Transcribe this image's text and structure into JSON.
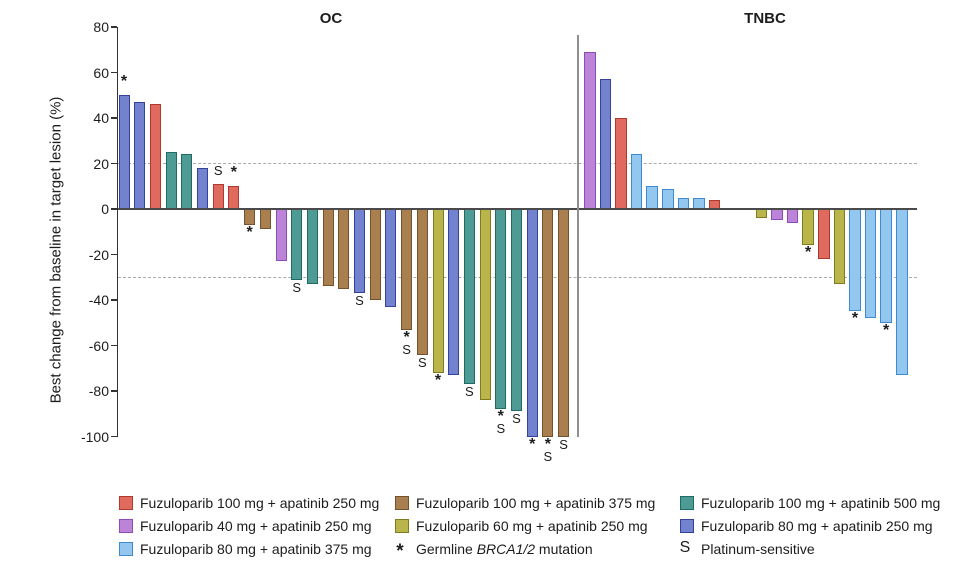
{
  "figure": {
    "ylabel": "Best change from baseline in target lesion (%)"
  },
  "colors": {
    "red": {
      "fill": "#E16A5F",
      "stroke": "#AE3A2E"
    },
    "purple": {
      "fill": "#BC84D9",
      "stroke": "#8F4BB8"
    },
    "ltblue": {
      "fill": "#94C7EF",
      "stroke": "#3E8BCD"
    },
    "brown": {
      "fill": "#A97F50",
      "stroke": "#74522B"
    },
    "olive": {
      "fill": "#B9B54B",
      "stroke": "#7F7B20"
    },
    "teal": {
      "fill": "#4E9B95",
      "stroke": "#1F6A63"
    },
    "blue": {
      "fill": "#7382CF",
      "stroke": "#35429B"
    }
  },
  "chart_data": {
    "type": "bar",
    "title": "",
    "ylabel": "Best change from baseline in target lesion (%)",
    "ylim": [
      -100,
      80
    ],
    "yticks": [
      80,
      60,
      40,
      20,
      0,
      -20,
      -40,
      -60,
      -80,
      -100
    ],
    "reference_lines_pct": [
      20,
      -30
    ],
    "grid": "dashed horizontal reference lines at +20 and -30",
    "legend_position": "bottom",
    "marks_meaning": {
      "*": "Germline BRCA1/2 mutation",
      "S": "Platinum-sensitive"
    },
    "panels": [
      {
        "name": "OC",
        "bars": [
          {
            "v": 50,
            "c": "blue",
            "m": "*"
          },
          {
            "v": 47,
            "c": "blue"
          },
          {
            "v": 46,
            "c": "red"
          },
          {
            "v": 25,
            "c": "teal"
          },
          {
            "v": 24,
            "c": "teal"
          },
          {
            "v": 18,
            "c": "blue"
          },
          {
            "v": 11,
            "c": "red",
            "m": "S"
          },
          {
            "v": 10,
            "c": "red",
            "m": "*"
          },
          {
            "v": -7,
            "c": "brown",
            "m": "*"
          },
          {
            "v": -9,
            "c": "brown"
          },
          {
            "v": -23,
            "c": "purple"
          },
          {
            "v": -31,
            "c": "teal",
            "m": "S"
          },
          {
            "v": -33,
            "c": "teal"
          },
          {
            "v": -34,
            "c": "brown"
          },
          {
            "v": -35,
            "c": "brown"
          },
          {
            "v": -37,
            "c": "blue",
            "m": "S"
          },
          {
            "v": -40,
            "c": "brown"
          },
          {
            "v": -43,
            "c": "blue"
          },
          {
            "v": -53,
            "c": "brown",
            "m": "*S"
          },
          {
            "v": -64,
            "c": "brown",
            "m": "S"
          },
          {
            "v": -72,
            "c": "olive",
            "m": "*"
          },
          {
            "v": -73,
            "c": "blue"
          },
          {
            "v": -77,
            "c": "teal",
            "m": "S"
          },
          {
            "v": -84,
            "c": "olive"
          },
          {
            "v": -88,
            "c": "teal",
            "m": "*S"
          },
          {
            "v": -89,
            "c": "teal",
            "m": "S"
          },
          {
            "v": -100,
            "c": "blue",
            "m": "*"
          },
          {
            "v": -100,
            "c": "brown",
            "m": "*S"
          },
          {
            "v": -100,
            "c": "brown",
            "m": "S"
          }
        ]
      },
      {
        "name": "TNBC",
        "bars": [
          {
            "v": 69,
            "c": "purple"
          },
          {
            "v": 57,
            "c": "blue"
          },
          {
            "v": 40,
            "c": "red"
          },
          {
            "v": 24,
            "c": "ltblue"
          },
          {
            "v": 10,
            "c": "ltblue"
          },
          {
            "v": 9,
            "c": "ltblue"
          },
          {
            "v": 5,
            "c": "ltblue"
          },
          {
            "v": 5,
            "c": "ltblue"
          },
          {
            "v": 4,
            "c": "red"
          },
          {
            "v": 0,
            "c": null
          },
          {
            "v": 0,
            "c": null
          },
          {
            "v": -4,
            "c": "olive"
          },
          {
            "v": -5,
            "c": "purple"
          },
          {
            "v": -6,
            "c": "purple"
          },
          {
            "v": -16,
            "c": "olive",
            "m": "*"
          },
          {
            "v": -22,
            "c": "red"
          },
          {
            "v": -33,
            "c": "olive"
          },
          {
            "v": -45,
            "c": "ltblue",
            "m": "*"
          },
          {
            "v": -48,
            "c": "ltblue"
          },
          {
            "v": -50,
            "c": "ltblue",
            "m": "*"
          },
          {
            "v": -73,
            "c": "ltblue"
          }
        ]
      }
    ]
  },
  "legend": {
    "columns": [
      {
        "items": [
          {
            "swatch": "red",
            "parts": [
              {
                "t": "Fuzuloparib 100 mg + apatinib 250 mg"
              }
            ]
          },
          {
            "swatch": "purple",
            "parts": [
              {
                "t": "Fuzuloparib 40 mg + apatinib 250 mg"
              }
            ]
          },
          {
            "swatch": "ltblue",
            "parts": [
              {
                "t": "Fuzuloparib 80 mg + apatinib 375 mg"
              }
            ]
          }
        ]
      },
      {
        "items": [
          {
            "swatch": "brown",
            "parts": [
              {
                "t": "Fuzuloparib 100 mg + apatinib 375 mg"
              }
            ]
          },
          {
            "swatch": "olive",
            "parts": [
              {
                "t": "Fuzuloparib 60 mg + apatinib 250 mg"
              }
            ]
          },
          {
            "symbol": "*",
            "parts": [
              {
                "t": "Germline "
              },
              {
                "t": "BRCA1/2",
                "i": true
              },
              {
                "t": " mutation"
              }
            ]
          }
        ]
      },
      {
        "items": [
          {
            "swatch": "teal",
            "parts": [
              {
                "t": "Fuzuloparib 100 mg + apatinib 500 mg"
              }
            ]
          },
          {
            "swatch": "blue",
            "parts": [
              {
                "t": "Fuzuloparib 80 mg + apatinib 250 mg"
              }
            ]
          },
          {
            "symbol": "S",
            "parts": [
              {
                "t": "Platinum-sensitive"
              }
            ]
          }
        ]
      }
    ]
  }
}
